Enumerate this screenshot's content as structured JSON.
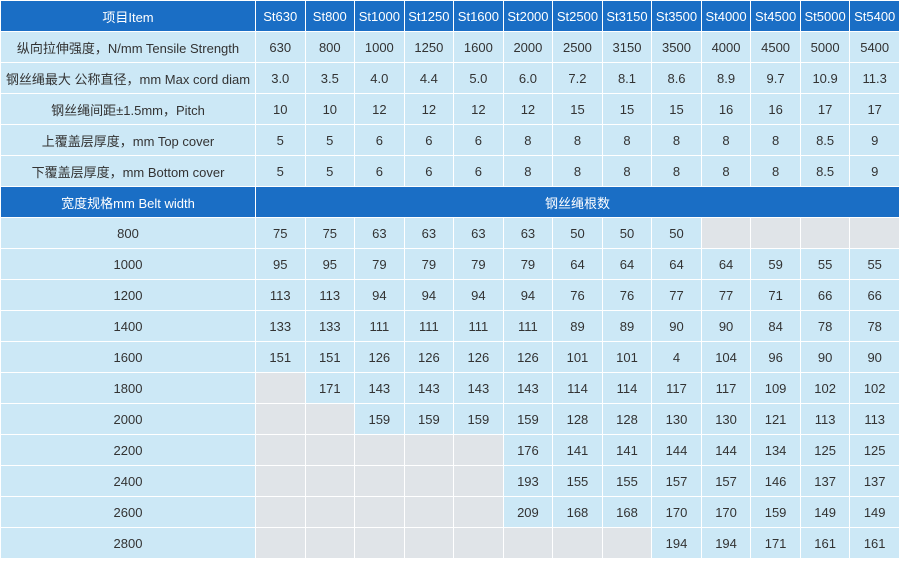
{
  "header": {
    "item_label": "项目Item",
    "grades": [
      "St630",
      "St800",
      "St1000",
      "St1250",
      "St1600",
      "St2000",
      "St2500",
      "St3150",
      "St3500",
      "St4000",
      "St4500",
      "St5000",
      "St5400"
    ]
  },
  "properties": [
    {
      "label": "纵向拉伸强度，N/mm Tensile Strength",
      "values": [
        "630",
        "800",
        "1000",
        "1250",
        "1600",
        "2000",
        "2500",
        "3150",
        "3500",
        "4000",
        "4500",
        "5000",
        "5400"
      ]
    },
    {
      "label": "钢丝绳最大 公称直径，mm Max cord diam",
      "values": [
        "3.0",
        "3.5",
        "4.0",
        "4.4",
        "5.0",
        "6.0",
        "7.2",
        "8.1",
        "8.6",
        "8.9",
        "9.7",
        "10.9",
        "11.3"
      ]
    },
    {
      "label": "钢丝绳间距±1.5mm，Pitch",
      "values": [
        "10",
        "10",
        "12",
        "12",
        "12",
        "12",
        "15",
        "15",
        "15",
        "16",
        "16",
        "17",
        "17"
      ]
    },
    {
      "label": "上覆盖层厚度，mm Top cover",
      "values": [
        "5",
        "5",
        "6",
        "6",
        "6",
        "8",
        "8",
        "8",
        "8",
        "8",
        "8",
        "8.5",
        "9"
      ]
    },
    {
      "label": "下覆盖层厚度，mm Bottom cover",
      "values": [
        "5",
        "5",
        "6",
        "6",
        "6",
        "8",
        "8",
        "8",
        "8",
        "8",
        "8",
        "8.5",
        "9"
      ]
    }
  ],
  "width_section": {
    "label": "宽度规格mm Belt width",
    "cord_count_label": "钢丝绳根数"
  },
  "widths": [
    {
      "width": "800",
      "values": [
        "75",
        "75",
        "63",
        "63",
        "63",
        "63",
        "50",
        "50",
        "50",
        "",
        "",
        "",
        ""
      ]
    },
    {
      "width": "1000",
      "values": [
        "95",
        "95",
        "79",
        "79",
        "79",
        "79",
        "64",
        "64",
        "64",
        "64",
        "59",
        "55",
        "55"
      ]
    },
    {
      "width": "1200",
      "values": [
        "113",
        "113",
        "94",
        "94",
        "94",
        "94",
        "76",
        "76",
        "77",
        "77",
        "71",
        "66",
        "66"
      ]
    },
    {
      "width": "1400",
      "values": [
        "133",
        "133",
        "111",
        "111",
        "111",
        "111",
        "89",
        "89",
        "90",
        "90",
        "84",
        "78",
        "78"
      ]
    },
    {
      "width": "1600",
      "values": [
        "151",
        "151",
        "126",
        "126",
        "126",
        "126",
        "101",
        "101",
        "4",
        "104",
        "96",
        "90",
        "90"
      ]
    },
    {
      "width": "1800",
      "values": [
        "",
        "171",
        "143",
        "143",
        "143",
        "143",
        "114",
        "114",
        "117",
        "117",
        "109",
        "102",
        "102"
      ]
    },
    {
      "width": "2000",
      "values": [
        "",
        "",
        "159",
        "159",
        "159",
        "159",
        "128",
        "128",
        "130",
        "130",
        "121",
        "113",
        "113"
      ]
    },
    {
      "width": "2200",
      "values": [
        "",
        "",
        "",
        "",
        "",
        "176",
        "141",
        "141",
        "144",
        "144",
        "134",
        "125",
        "125"
      ]
    },
    {
      "width": "2400",
      "values": [
        "",
        "",
        "",
        "",
        "",
        "193",
        "155",
        "155",
        "157",
        "157",
        "146",
        "137",
        "137"
      ]
    },
    {
      "width": "2600",
      "values": [
        "",
        "",
        "",
        "",
        "",
        "209",
        "168",
        "168",
        "170",
        "170",
        "159",
        "149",
        "149"
      ]
    },
    {
      "width": "2800",
      "values": [
        "",
        "",
        "",
        "",
        "",
        "",
        "",
        "",
        "194",
        "194",
        "171",
        "161",
        "161"
      ]
    }
  ]
}
